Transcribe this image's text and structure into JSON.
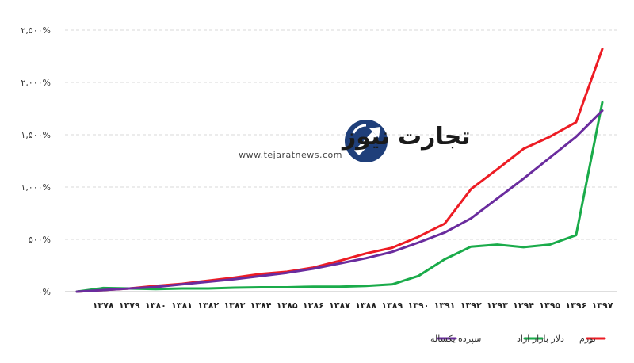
{
  "logo": {
    "name": "تجارت نیوز",
    "url_text": "www.tejaratnews.com"
  },
  "chart_data": {
    "type": "line",
    "x": [
      "۱۳۷۸",
      "۱۳۷۹",
      "۱۳۸۰",
      "۱۳۸۱",
      "۱۳۸۲",
      "۱۳۸۳",
      "۱۳۸۴",
      "۱۳۸۵",
      "۱۳۸۶",
      "۱۳۸۷",
      "۱۳۸۸",
      "۱۳۸۹",
      "۱۳۹۰",
      "۱۳۹۱",
      "۱۳۹۲",
      "۱۳۹۳",
      "۱۳۹۴",
      "۱۳۹۵",
      "۱۳۹۶",
      "۱۳۹۷"
    ],
    "x_values": [
      1377,
      1378,
      1379,
      1380,
      1381,
      1382,
      1383,
      1384,
      1385,
      1386,
      1387,
      1388,
      1389,
      1390,
      1391,
      1392,
      1393,
      1394,
      1395,
      1396,
      1397
    ],
    "y_ticks": [
      0,
      500,
      1000,
      1500,
      2000,
      2500
    ],
    "y_tick_labels": [
      "۰%",
      "۵۰۰%",
      "۱,۰۰۰%",
      "۱,۵۰۰%",
      "۲,۰۰۰%",
      "۲,۵۰۰%"
    ],
    "ylim": [
      0,
      2500
    ],
    "series": [
      {
        "name": "تورم",
        "color": "#ed1c24",
        "values": [
          0,
          15,
          30,
          55,
          75,
          105,
          135,
          170,
          190,
          230,
          295,
          365,
          420,
          525,
          650,
          980,
          1170,
          1365,
          1480,
          1620,
          2320
        ]
      },
      {
        "name": "دلار بازار آزاد",
        "color": "#1aab4a",
        "values": [
          0,
          35,
          30,
          25,
          30,
          30,
          38,
          42,
          42,
          48,
          48,
          55,
          70,
          150,
          310,
          430,
          450,
          425,
          450,
          540,
          1810
        ]
      },
      {
        "name": "سپرده یکساله",
        "color": "#6a2c9e",
        "values": [
          0,
          15,
          30,
          45,
          70,
          95,
          120,
          150,
          180,
          220,
          270,
          320,
          380,
          470,
          565,
          700,
          890,
          1080,
          1280,
          1480,
          1730
        ]
      }
    ],
    "legend_order": [
      "سپرده یکساله",
      "دلار بازار آزاد",
      "تورم"
    ],
    "legend_placement": "bottom",
    "grid": "horizontal"
  }
}
